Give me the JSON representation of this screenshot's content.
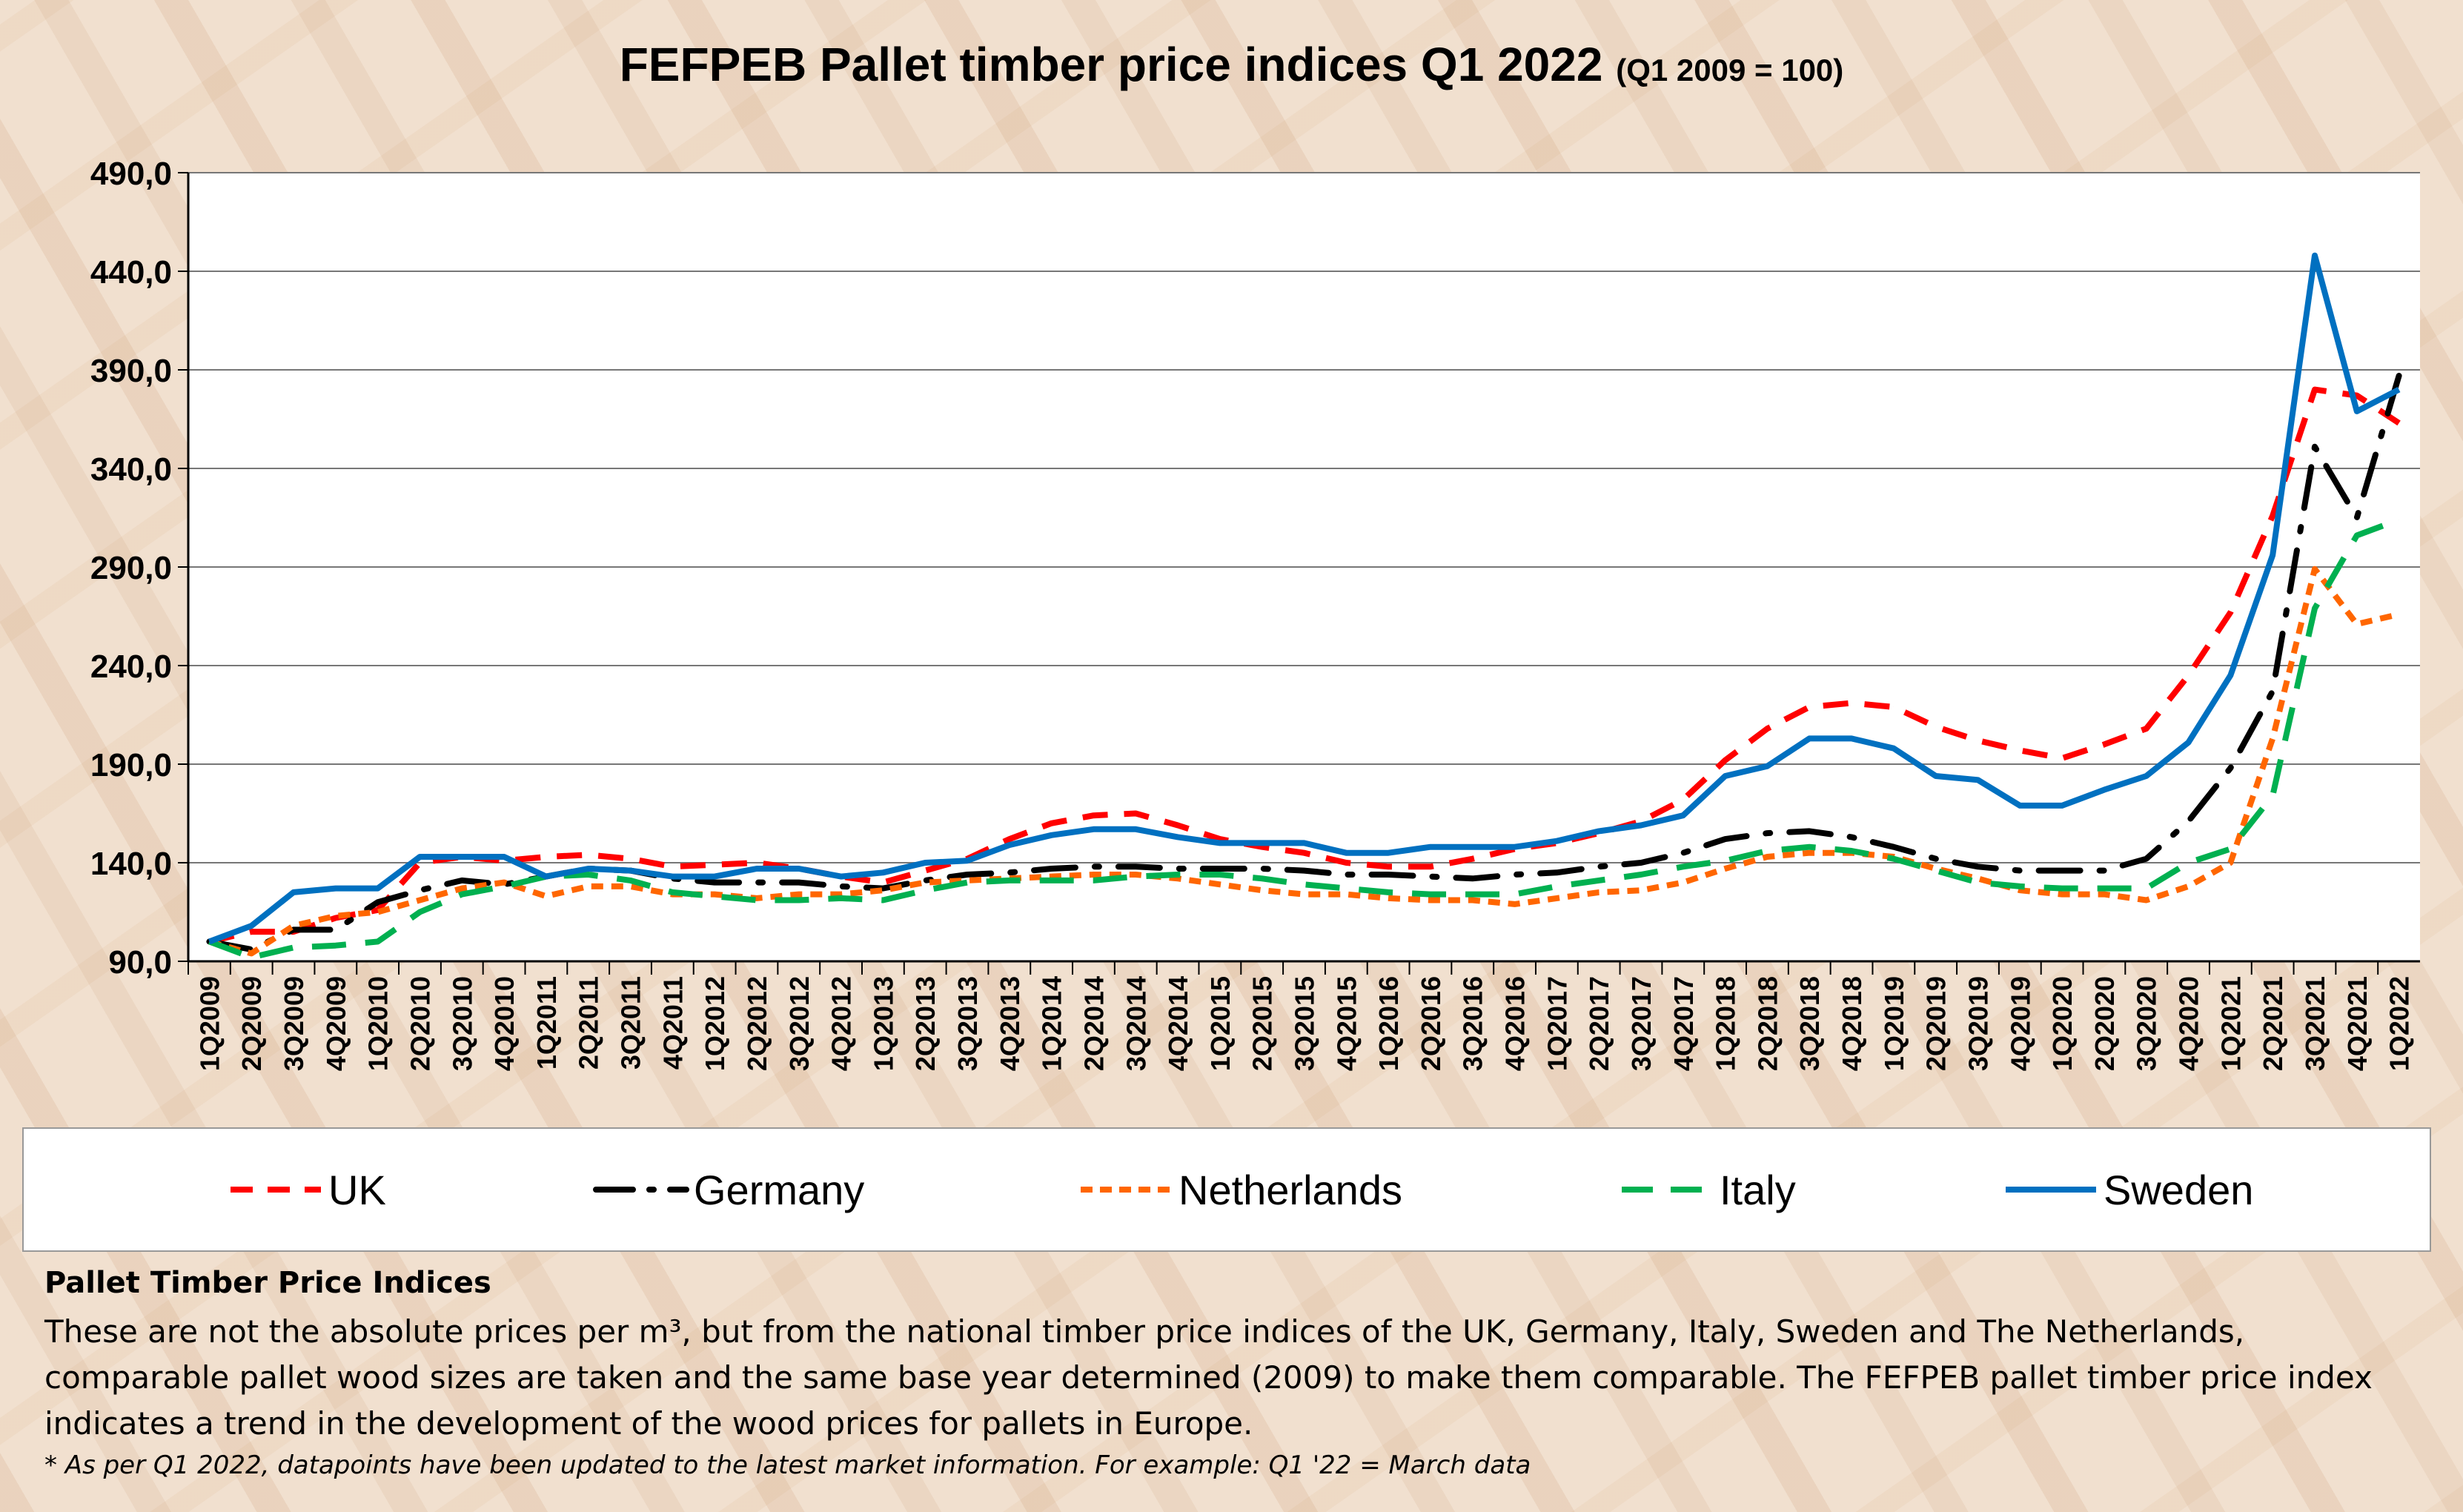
{
  "chart_data": {
    "type": "line",
    "title": "FEFPEB Pallet timber price indices Q1 2022",
    "subtitle": "(Q1 2009 = 100)",
    "xlabel": "",
    "ylabel": "",
    "ylim": [
      90,
      490
    ],
    "yticks": [
      "90,0",
      "140,0",
      "190,0",
      "240,0",
      "290,0",
      "340,0",
      "390,0",
      "440,0",
      "490,0"
    ],
    "grid": true,
    "legend_position": "bottom",
    "categories": [
      "1Q2009",
      "2Q2009",
      "3Q2009",
      "4Q2009",
      "1Q2010",
      "2Q2010",
      "3Q2010",
      "4Q2010",
      "1Q2011",
      "2Q2011",
      "3Q2011",
      "4Q2011",
      "1Q2012",
      "2Q2012",
      "3Q2012",
      "4Q2012",
      "1Q2013",
      "2Q2013",
      "3Q2013",
      "4Q2013",
      "1Q2014",
      "2Q2014",
      "3Q2014",
      "4Q2014",
      "1Q2015",
      "2Q2015",
      "3Q2015",
      "4Q2015",
      "1Q2016",
      "2Q2016",
      "3Q2016",
      "4Q2016",
      "1Q2017",
      "2Q2017",
      "3Q2017",
      "4Q2017",
      "1Q2018",
      "2Q2018",
      "3Q2018",
      "4Q2018",
      "1Q2019",
      "2Q2019",
      "3Q2019",
      "4Q2019",
      "1Q2020",
      "2Q2020",
      "3Q2020",
      "4Q2020",
      "1Q2021",
      "2Q2021",
      "3Q2021",
      "4Q2021",
      "1Q2022"
    ],
    "series": [
      {
        "name": "UK",
        "color": "#ff0000",
        "style": "dash",
        "values": [
          100,
          105,
          105,
          112,
          116,
          140,
          143,
          141,
          143,
          144,
          142,
          138,
          139,
          140,
          137,
          133,
          130,
          136,
          142,
          152,
          160,
          164,
          165,
          159,
          152,
          148,
          145,
          140,
          138,
          138,
          142,
          147,
          150,
          155,
          161,
          172,
          192,
          208,
          219,
          221,
          219,
          209,
          202,
          197,
          193,
          200,
          208,
          235,
          267,
          316,
          380,
          377,
          363
        ]
      },
      {
        "name": "Germany",
        "color": "#000000",
        "style": "dashdot",
        "values": [
          100,
          96,
          106,
          106,
          120,
          126,
          131,
          129,
          133,
          137,
          136,
          132,
          130,
          130,
          130,
          128,
          127,
          131,
          134,
          135,
          137,
          138,
          138,
          137,
          137,
          137,
          136,
          134,
          134,
          133,
          132,
          134,
          135,
          138,
          140,
          145,
          152,
          155,
          156,
          153,
          148,
          142,
          138,
          136,
          136,
          136,
          142,
          161,
          188,
          227,
          351,
          315,
          387
        ]
      },
      {
        "name": "Netherlands",
        "color": "#ff6600",
        "style": "shortdash",
        "values": [
          100,
          94,
          108,
          113,
          115,
          121,
          127,
          130,
          123,
          128,
          128,
          124,
          124,
          122,
          124,
          124,
          126,
          130,
          131,
          132,
          133,
          134,
          134,
          132,
          129,
          126,
          124,
          124,
          122,
          121,
          121,
          119,
          122,
          125,
          126,
          130,
          137,
          143,
          145,
          145,
          143,
          137,
          132,
          126,
          124,
          124,
          121,
          128,
          140,
          203,
          289,
          261,
          266
        ]
      },
      {
        "name": "Italy",
        "color": "#00b050",
        "style": "longdash",
        "values": [
          100,
          92,
          97,
          98,
          100,
          115,
          124,
          128,
          133,
          134,
          131,
          125,
          123,
          121,
          121,
          122,
          121,
          126,
          130,
          131,
          131,
          131,
          133,
          134,
          134,
          132,
          129,
          127,
          125,
          124,
          124,
          124,
          128,
          131,
          134,
          138,
          141,
          146,
          148,
          146,
          142,
          136,
          130,
          128,
          127,
          127,
          127,
          140,
          147,
          174,
          269,
          306,
          314
        ]
      },
      {
        "name": "Sweden",
        "color": "#0070c0",
        "style": "solid",
        "values": [
          100,
          108,
          125,
          127,
          127,
          143,
          143,
          143,
          133,
          137,
          136,
          133,
          133,
          137,
          137,
          133,
          135,
          140,
          141,
          149,
          154,
          157,
          157,
          153,
          150,
          150,
          150,
          145,
          145,
          148,
          148,
          148,
          151,
          156,
          159,
          164,
          184,
          189,
          203,
          203,
          198,
          184,
          182,
          169,
          169,
          177,
          184,
          201,
          235,
          296,
          448,
          369,
          380
        ]
      }
    ]
  },
  "notes": {
    "heading": "Pallet Timber Price Indices",
    "body": "These are not the absolute prices per m³, but from the national timber price indices of the UK, Germany, Italy, Sweden and The Netherlands, comparable pallet wood sizes are taken and the same base year determined (2009) to make them comparable. The FEFPEB pallet timber price index indicates a trend in the development of the wood prices for pallets in Europe.",
    "footnote": "* As per Q1 2022, datapoints have been updated to the latest market information. For example: Q1 '22 = March data"
  }
}
